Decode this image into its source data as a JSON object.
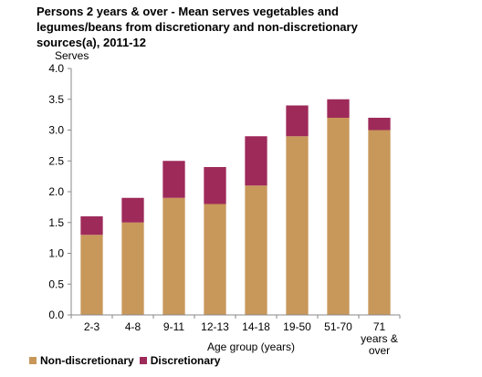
{
  "chart_data": {
    "type": "bar",
    "stacked": true,
    "title_lines": [
      "Persons  2 years  & over - Mean serves  vegetables and",
      "legumes/beans from discretionary  and non-discretionary",
      "sources(a),  2011-12"
    ],
    "ylabel": "Serves",
    "xlabel": "Age group (years)",
    "categories": [
      "2-3",
      "4-8",
      "9-11",
      "12-13",
      "14-18",
      "19-50",
      "51-70",
      "71 years & over"
    ],
    "category_label_lines": [
      [
        "2-3"
      ],
      [
        "4-8"
      ],
      [
        "9-11"
      ],
      [
        "12-13"
      ],
      [
        "14-18"
      ],
      [
        "19-50"
      ],
      [
        "51-70"
      ],
      [
        "71",
        "years &",
        "over"
      ]
    ],
    "series": [
      {
        "name": "Non-discretionary",
        "color": "#c8975a",
        "values": [
          1.3,
          1.5,
          1.9,
          1.8,
          2.1,
          2.9,
          3.2,
          3.0
        ]
      },
      {
        "name": "Discretionary",
        "color": "#9e2a5a",
        "values": [
          0.3,
          0.4,
          0.6,
          0.6,
          0.8,
          0.5,
          0.3,
          0.2
        ]
      }
    ],
    "ylim": [
      0,
      4.0
    ],
    "yticks": [
      "0.0",
      "0.5",
      "1.0",
      "1.5",
      "2.0",
      "2.5",
      "3.0",
      "3.5",
      "4.0"
    ],
    "grid": false,
    "legend_position": "bottom-left"
  }
}
